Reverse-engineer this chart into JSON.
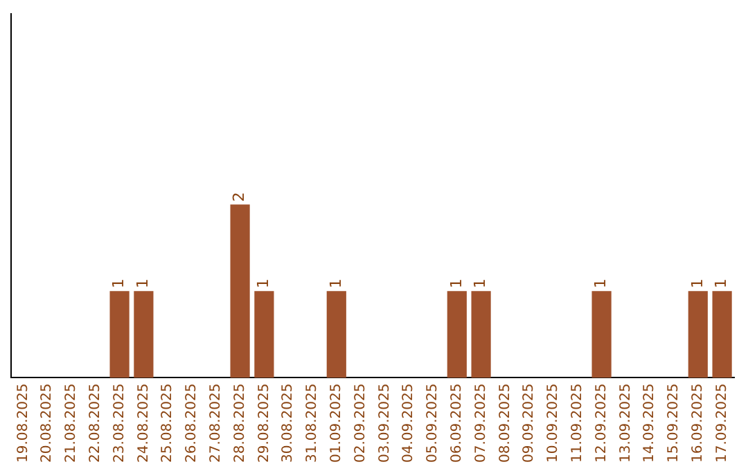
{
  "chart_data": {
    "type": "bar",
    "categories": [
      "19.08.2025",
      "20.08.2025",
      "21.08.2025",
      "22.08.2025",
      "23.08.2025",
      "24.08.2025",
      "25.08.2025",
      "26.08.2025",
      "27.08.2025",
      "28.08.2025",
      "29.08.2025",
      "30.08.2025",
      "31.08.2025",
      "01.09.2025",
      "02.09.2025",
      "03.09.2025",
      "04.09.2025",
      "05.09.2025",
      "06.09.2025",
      "07.09.2025",
      "08.09.2025",
      "09.09.2025",
      "10.09.2025",
      "11.09.2025",
      "12.09.2025",
      "13.09.2025",
      "14.09.2025",
      "15.09.2025",
      "16.09.2025",
      "17.09.2025"
    ],
    "values": [
      0,
      0,
      0,
      0,
      1,
      1,
      0,
      0,
      0,
      2,
      1,
      0,
      0,
      1,
      0,
      0,
      0,
      0,
      1,
      1,
      0,
      0,
      0,
      0,
      1,
      0,
      0,
      0,
      1,
      1
    ],
    "value_labels": [
      null,
      null,
      null,
      null,
      "1",
      "1",
      null,
      null,
      null,
      "2",
      "1",
      null,
      null,
      "1",
      null,
      null,
      null,
      null,
      "1",
      "1",
      null,
      null,
      null,
      null,
      "1",
      null,
      null,
      null,
      "1",
      "1"
    ],
    "color": "#a0522d",
    "ylim": [
      0,
      4.2
    ],
    "grid": false,
    "legend": false,
    "tick_labels": "x"
  }
}
